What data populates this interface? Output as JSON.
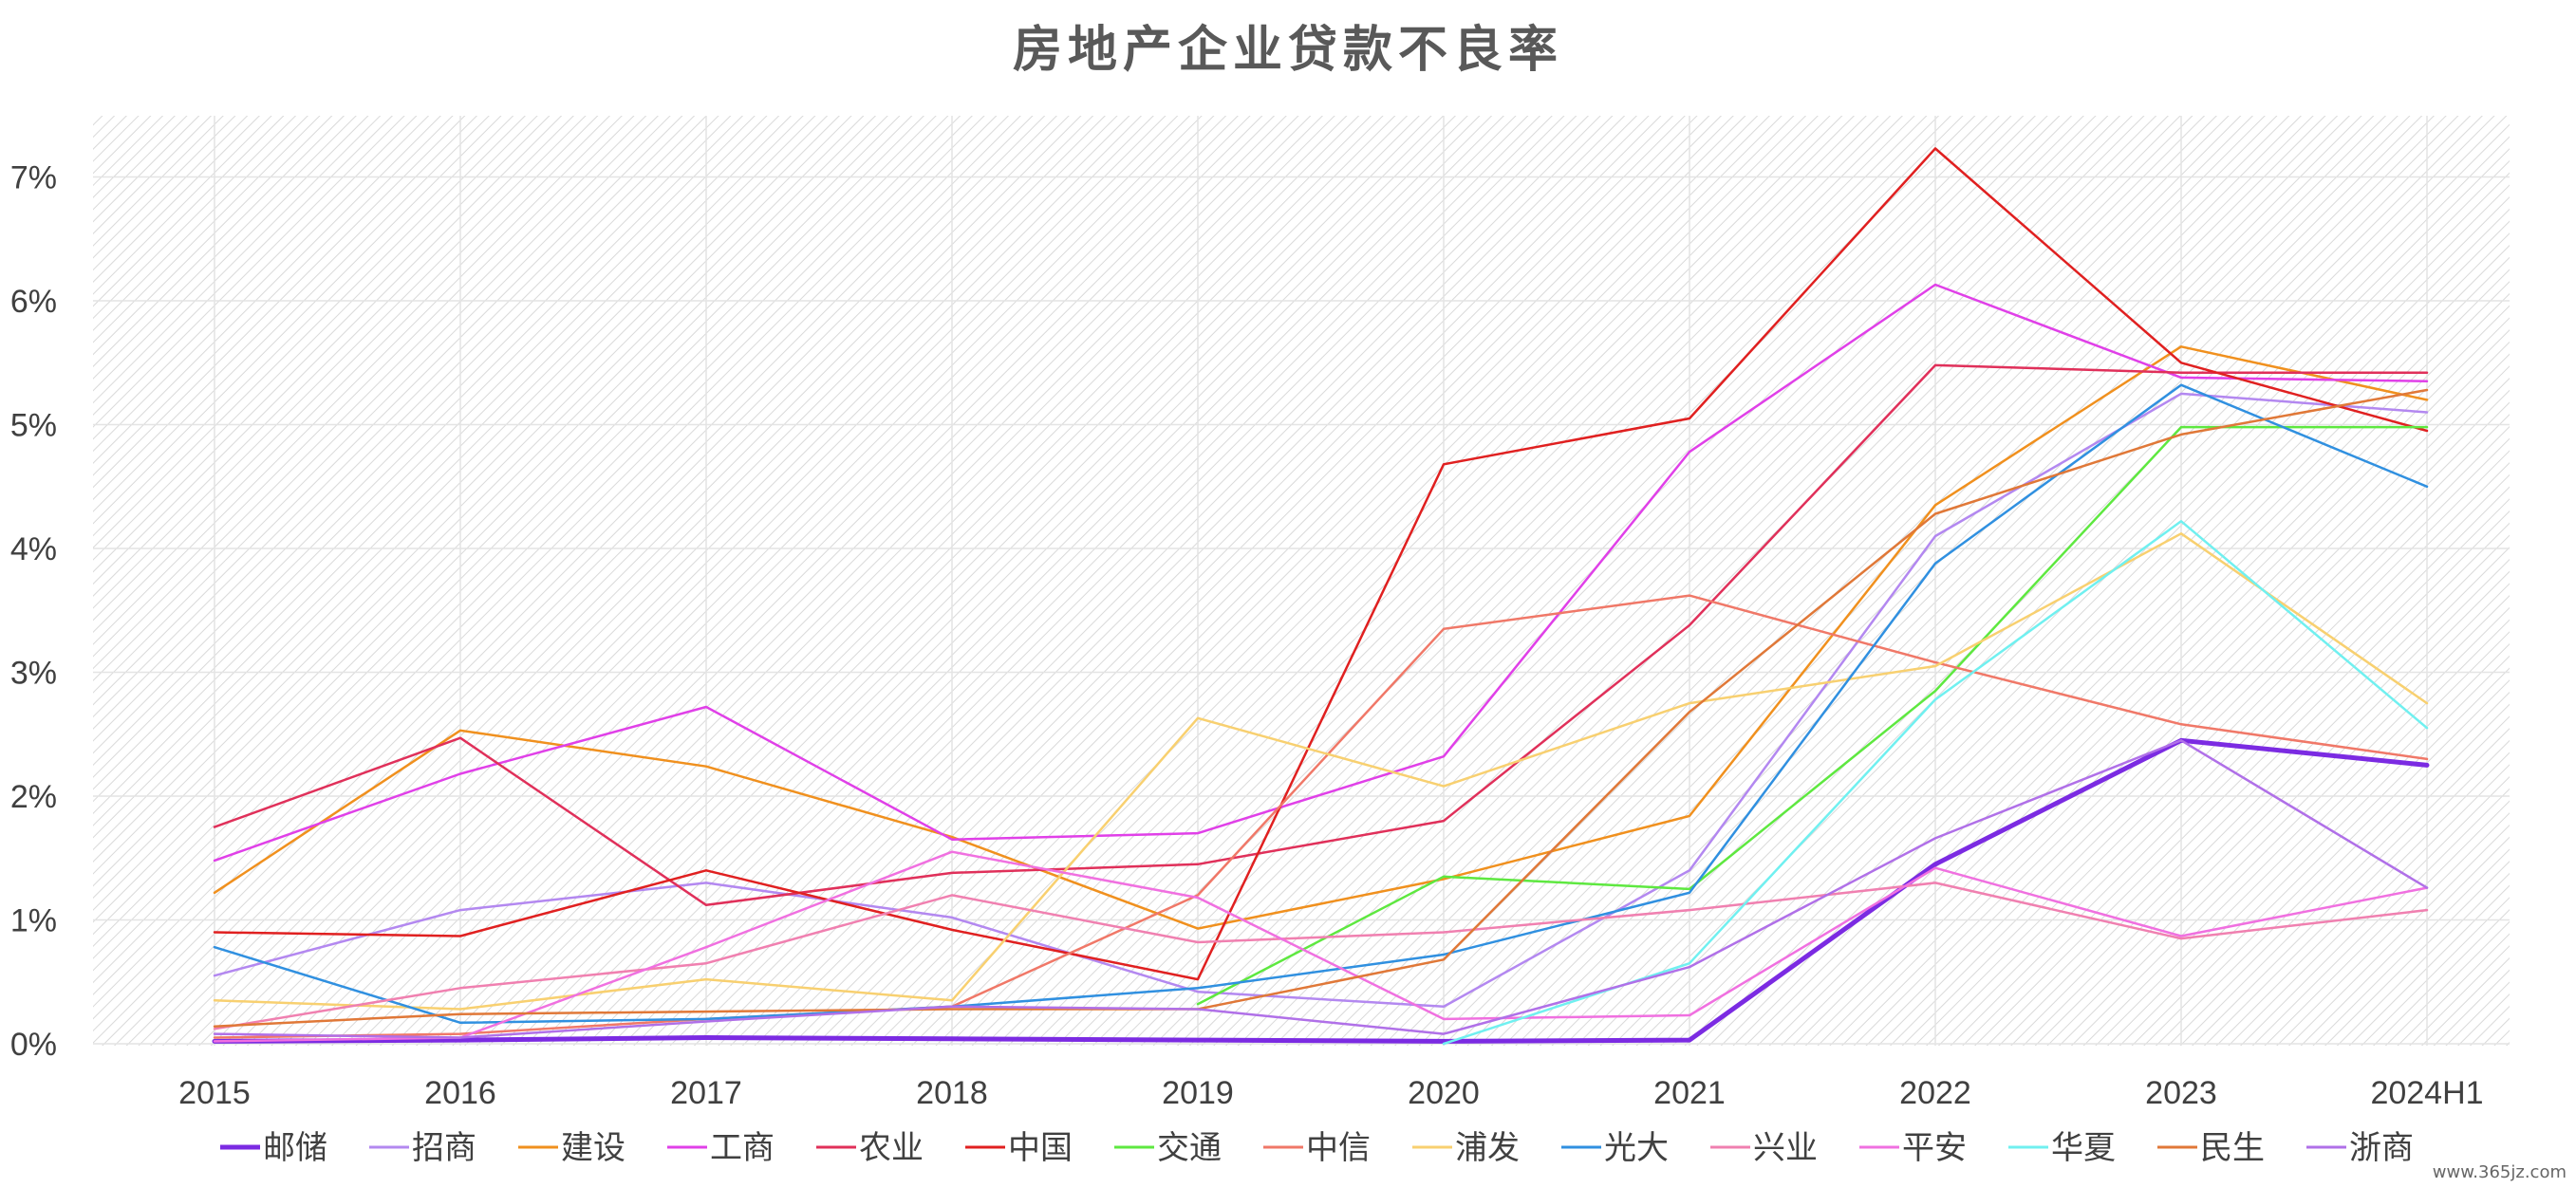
{
  "chart_data": {
    "type": "line",
    "title": "房地产企业贷款不良率",
    "categories": [
      "2015",
      "2016",
      "2017",
      "2018",
      "2019",
      "2020",
      "2021",
      "2022",
      "2023",
      "2024H1"
    ],
    "y_ticks": [
      "0%",
      "1%",
      "2%",
      "3%",
      "4%",
      "5%",
      "6%",
      "7%"
    ],
    "ylim": [
      0,
      7.5
    ],
    "y_unit": "%",
    "grid": true,
    "legend_position": "bottom",
    "series": [
      {
        "name": "邮储",
        "color": "#7B2BE2",
        "bold": true,
        "values": [
          0.02,
          0.03,
          0.05,
          0.04,
          0.03,
          0.02,
          0.03,
          1.45,
          2.45,
          2.25
        ]
      },
      {
        "name": "招商",
        "color": "#B388F0",
        "values": [
          0.55,
          1.08,
          1.3,
          1.02,
          0.42,
          0.3,
          1.4,
          4.1,
          5.25,
          5.1
        ]
      },
      {
        "name": "建设",
        "color": "#F0901E",
        "values": [
          1.22,
          2.53,
          2.24,
          1.67,
          0.93,
          1.33,
          1.84,
          4.35,
          5.63,
          5.2
        ]
      },
      {
        "name": "工商",
        "color": "#E040E8",
        "values": [
          1.48,
          2.18,
          2.72,
          1.65,
          1.7,
          2.32,
          4.78,
          6.13,
          5.38,
          5.35
        ]
      },
      {
        "name": "农业",
        "color": "#E0305A",
        "values": [
          1.75,
          2.47,
          1.12,
          1.38,
          1.45,
          1.8,
          3.38,
          5.48,
          5.42,
          5.42
        ]
      },
      {
        "name": "中国",
        "color": "#E02020",
        "values": [
          0.9,
          0.87,
          1.4,
          0.92,
          0.52,
          4.68,
          5.05,
          7.23,
          5.5,
          4.95
        ]
      },
      {
        "name": "交通",
        "color": "#5EE840",
        "values": [
          null,
          null,
          null,
          null,
          0.32,
          1.35,
          1.25,
          2.85,
          4.98,
          4.98
        ]
      },
      {
        "name": "中信",
        "color": "#F07868",
        "values": [
          0.05,
          0.08,
          0.2,
          0.3,
          1.2,
          3.35,
          3.62,
          3.08,
          2.58,
          2.3
        ]
      },
      {
        "name": "浦发",
        "color": "#F8D070",
        "values": [
          0.35,
          0.28,
          0.52,
          0.35,
          2.63,
          2.08,
          2.75,
          3.05,
          4.12,
          2.75
        ]
      },
      {
        "name": "光大",
        "color": "#3090E0",
        "values": [
          0.78,
          0.17,
          0.2,
          0.3,
          0.45,
          0.72,
          1.22,
          3.88,
          5.32,
          4.5
        ]
      },
      {
        "name": "兴业",
        "color": "#F080B0",
        "values": [
          0.12,
          0.45,
          0.65,
          1.2,
          0.82,
          0.9,
          1.08,
          1.3,
          0.85,
          1.08
        ]
      },
      {
        "name": "平安",
        "color": "#F070E0",
        "values": [
          0.02,
          0.05,
          0.78,
          1.55,
          1.18,
          0.2,
          0.23,
          1.42,
          0.87,
          1.26
        ]
      },
      {
        "name": "华夏",
        "color": "#70F0F0",
        "values": [
          null,
          null,
          null,
          null,
          null,
          0.0,
          0.65,
          2.78,
          4.22,
          2.55
        ]
      },
      {
        "name": "民生",
        "color": "#E07838",
        "values": [
          0.14,
          0.24,
          0.26,
          0.28,
          0.28,
          0.68,
          2.68,
          4.28,
          4.92,
          5.28
        ]
      },
      {
        "name": "浙商",
        "color": "#B070E8",
        "values": [
          0.08,
          0.05,
          0.18,
          0.3,
          0.28,
          0.08,
          0.62,
          1.66,
          2.45,
          1.26
        ]
      }
    ]
  },
  "watermark": "www.365jz.com"
}
